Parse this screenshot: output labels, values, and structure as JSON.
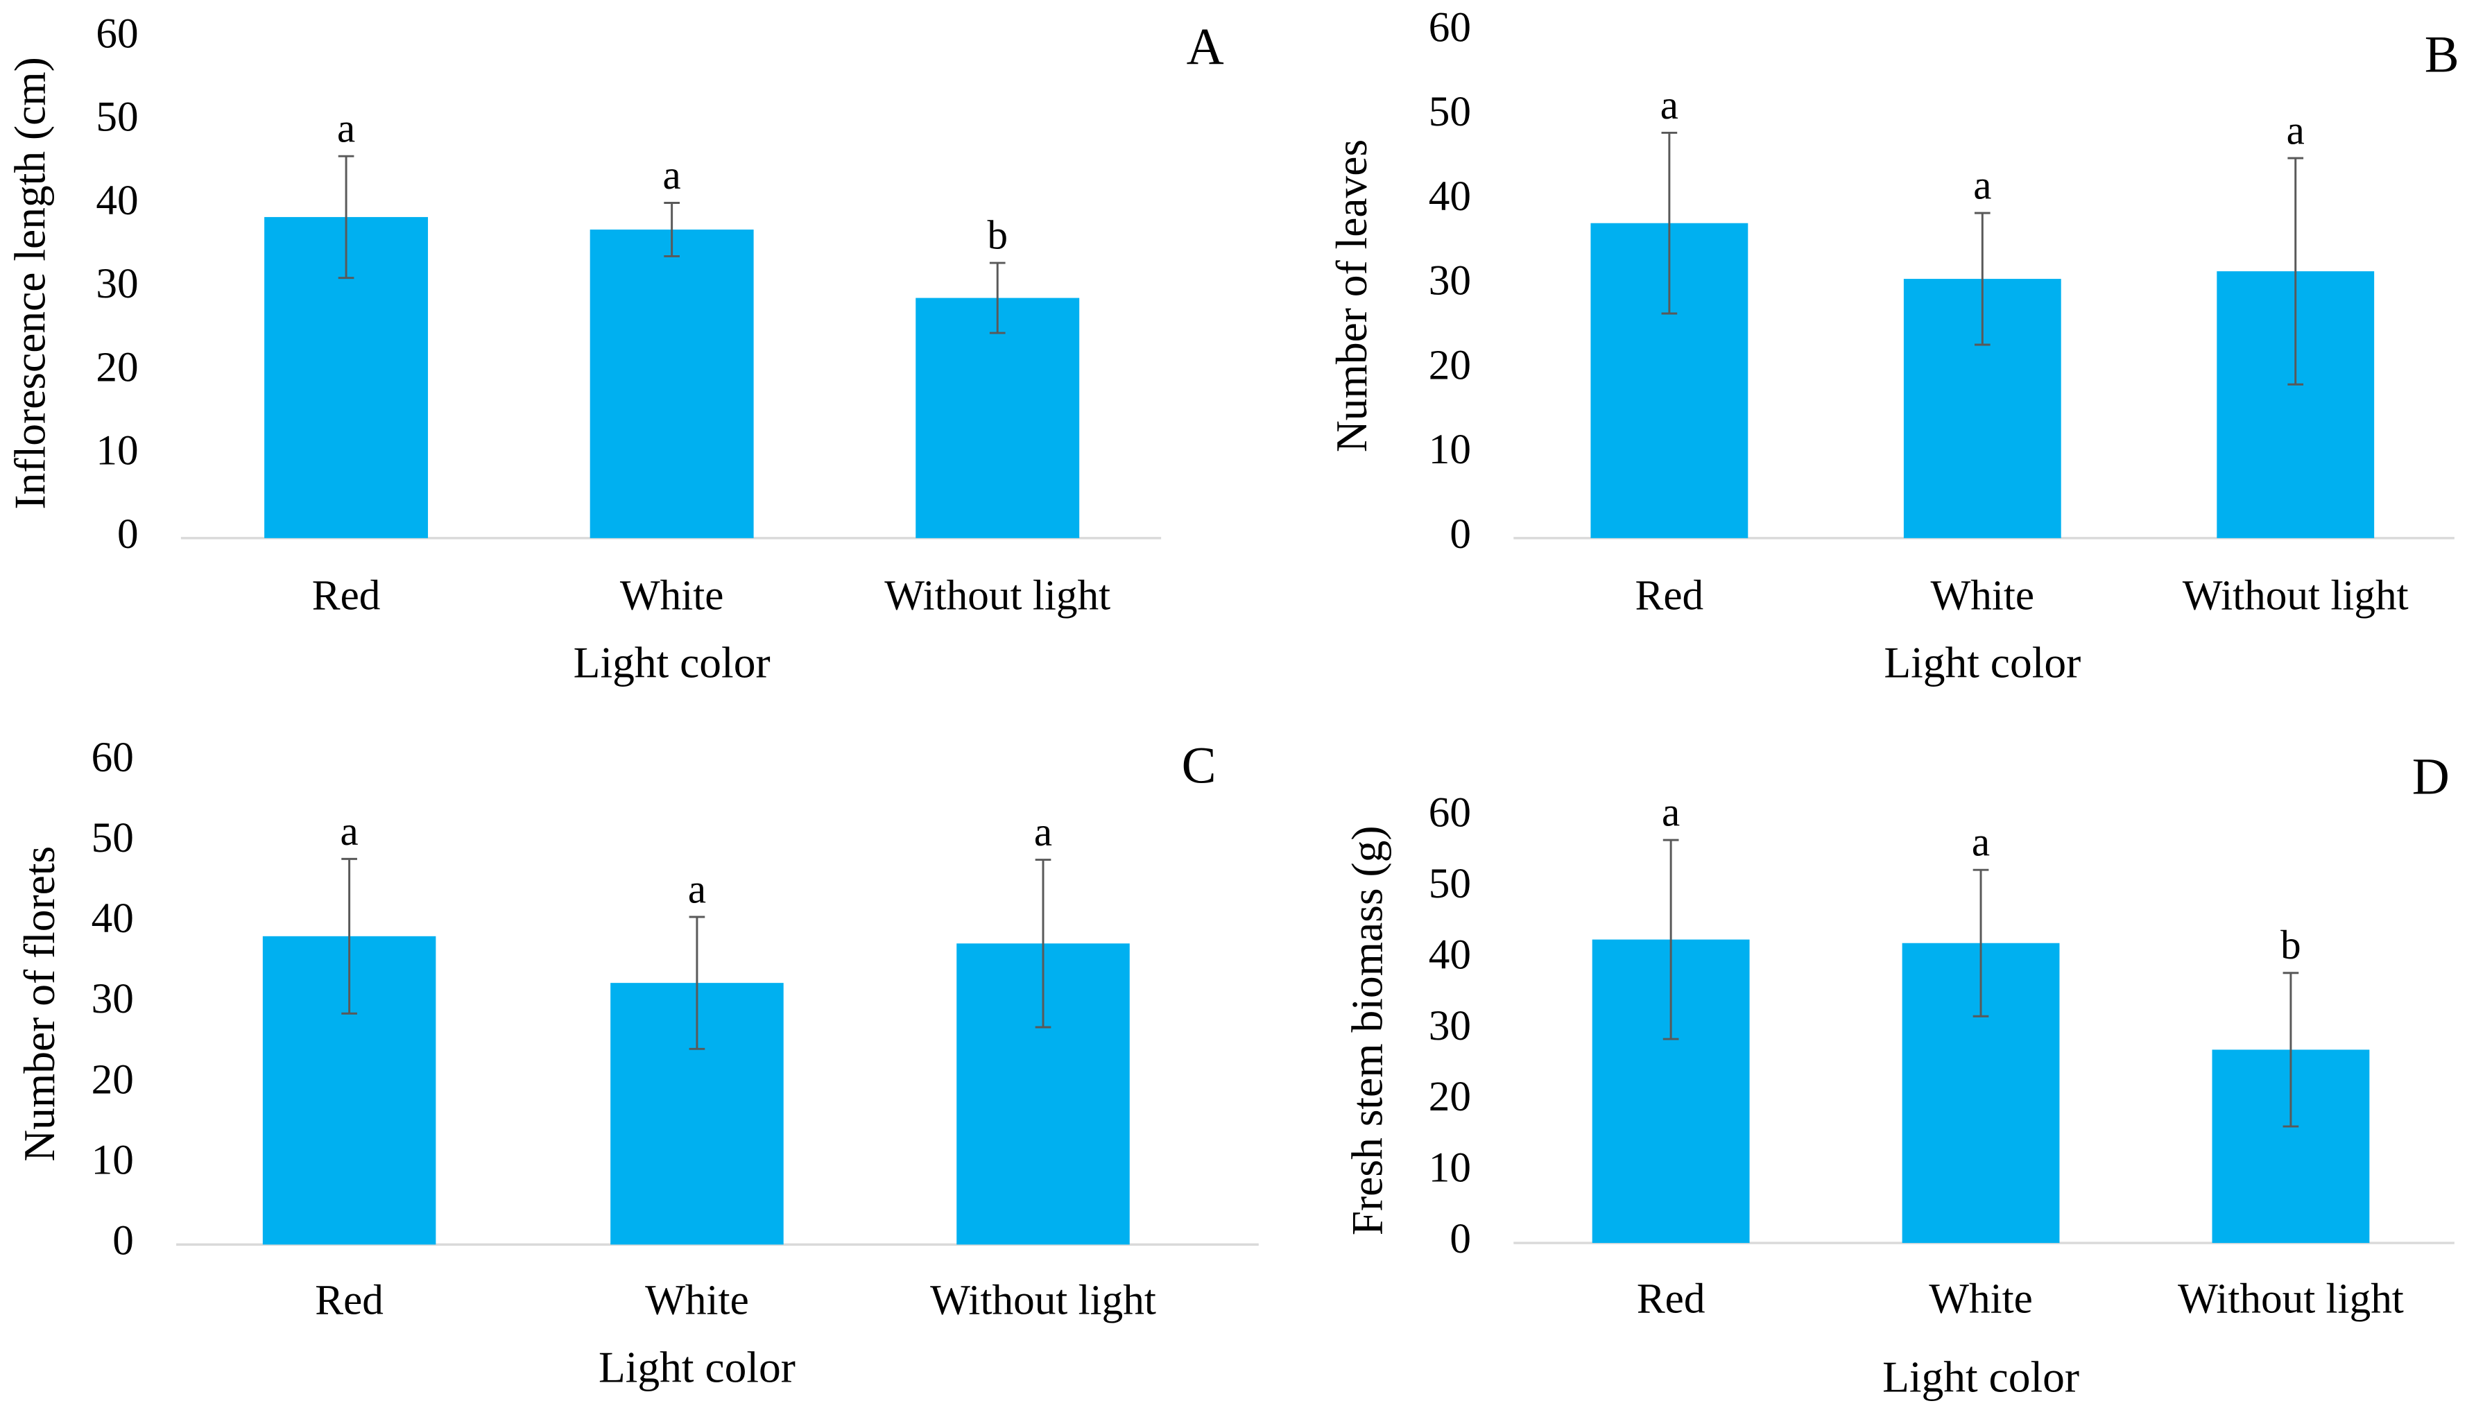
{
  "chart_data": [
    {
      "type": "bar",
      "panel": "A",
      "ylabel": "Inflorescence length (cm)",
      "xlabel": "Light color",
      "categories": [
        "Red",
        "White",
        "Without light"
      ],
      "values": [
        38.5,
        37,
        28.8
      ],
      "errors": [
        7.3,
        3.2,
        4.2
      ],
      "annotations": [
        "a",
        "a",
        "b"
      ],
      "color": "#00b0f0",
      "ylim": [
        0,
        60
      ],
      "yticks": [
        0,
        10,
        20,
        30,
        40,
        50,
        60
      ]
    },
    {
      "type": "bar",
      "panel": "B",
      "ylabel": "Number of leaves",
      "xlabel": "Light color",
      "categories": [
        "Red",
        "White",
        "Without light"
      ],
      "values": [
        37.3,
        30.7,
        31.6
      ],
      "errors": [
        10.7,
        7.8,
        13.4
      ],
      "annotations": [
        "a",
        "a",
        "a"
      ],
      "color": "#00b0f0",
      "ylim": [
        0,
        60
      ],
      "yticks": [
        0,
        10,
        20,
        30,
        40,
        50,
        60
      ]
    },
    {
      "type": "bar",
      "panel": "C",
      "ylabel": "Number of florets",
      "xlabel": "Light color",
      "categories": [
        "Red",
        "White",
        "Without light"
      ],
      "values": [
        38.3,
        32.5,
        37.4
      ],
      "errors": [
        9.6,
        8.2,
        10.4
      ],
      "annotations": [
        "a",
        "a",
        "a"
      ],
      "color": "#00b0f0",
      "ylim": [
        0,
        60
      ],
      "yticks": [
        0,
        10,
        20,
        30,
        40,
        50,
        60
      ]
    },
    {
      "type": "bar",
      "panel": "D",
      "ylabel": "Fresh stem biomass (g)",
      "xlabel": "Light color",
      "categories": [
        "Red",
        "White",
        "Without light"
      ],
      "values": [
        42.7,
        42.2,
        27.2
      ],
      "errors": [
        14,
        10.3,
        10.8
      ],
      "annotations": [
        "a",
        "a",
        "b"
      ],
      "color": "#00b0f0",
      "ylim": [
        0,
        60
      ],
      "yticks": [
        0,
        10,
        20,
        30,
        40,
        50,
        60
      ]
    }
  ]
}
